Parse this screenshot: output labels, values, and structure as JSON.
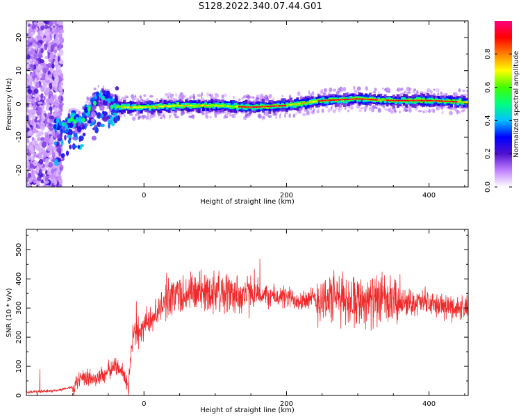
{
  "title": "S128.2022.340.07.44.G01",
  "colors": {
    "snr_line": "#ee2a2a",
    "axis": "#000000",
    "background": "#ffffff"
  },
  "chart_data": [
    {
      "type": "heatmap",
      "xlabel": "Height of straight line (km)",
      "ylabel": "Frequency (Hz)",
      "xlim": [
        -165,
        455
      ],
      "ylim": [
        -25,
        25
      ],
      "xticks": [
        0,
        200,
        400
      ],
      "yticks": [
        -20,
        -10,
        0,
        10,
        20
      ],
      "colorbar": {
        "label": "Normalized spectral amplitude",
        "range": [
          0,
          1
        ],
        "ticks": [
          "0.0",
          "0.2",
          "0.4",
          "0.6",
          "0.8"
        ],
        "colormap": [
          "#ffffff",
          "#c080ff",
          "#5010d0",
          "#0000ff",
          "#00c0ff",
          "#00ff80",
          "#40ff00",
          "#ffff00",
          "#ff8000",
          "#ff0000",
          "#ff0080"
        ]
      },
      "ridge": {
        "x": [
          -120,
          -110,
          -100,
          -90,
          -80,
          -70,
          -60,
          -50,
          -40,
          -30,
          -20,
          0,
          50,
          100,
          150,
          200,
          250,
          300,
          350,
          400,
          455
        ],
        "freq_hz": [
          -6,
          -7,
          -4,
          -6,
          -2,
          1,
          3,
          1,
          -1,
          -1,
          -1,
          -1,
          -0.5,
          -0.5,
          -1,
          -0.5,
          1,
          1.5,
          1,
          1,
          0.5
        ]
      },
      "grid": false
    },
    {
      "type": "line",
      "xlabel": "Height of straight line (km)",
      "ylabel": "SNR (10 * v/v)",
      "xlim": [
        -165,
        455
      ],
      "ylim": [
        0,
        570
      ],
      "xticks": [
        0,
        200,
        400
      ],
      "yticks": [
        0,
        100,
        200,
        300,
        400,
        500
      ],
      "series": [
        {
          "x": [
            -165,
            -140,
            -120,
            -100,
            -90,
            -80,
            -70,
            -60,
            -50,
            -40,
            -30,
            -25,
            -22,
            -18,
            -15,
            -10,
            0,
            10,
            20,
            30,
            40,
            60,
            80,
            100,
            120,
            140,
            160,
            180,
            200,
            220,
            240,
            260,
            280,
            300,
            320,
            340,
            360,
            380,
            400,
            420,
            440,
            455
          ],
          "values": [
            12,
            14,
            18,
            30,
            50,
            60,
            55,
            65,
            85,
            100,
            90,
            40,
            20,
            150,
            230,
            200,
            240,
            260,
            290,
            330,
            345,
            350,
            355,
            360,
            350,
            345,
            345,
            340,
            335,
            330,
            330,
            335,
            330,
            330,
            325,
            320,
            320,
            320,
            315,
            305,
            300,
            300
          ]
        }
      ],
      "grid": false
    }
  ]
}
